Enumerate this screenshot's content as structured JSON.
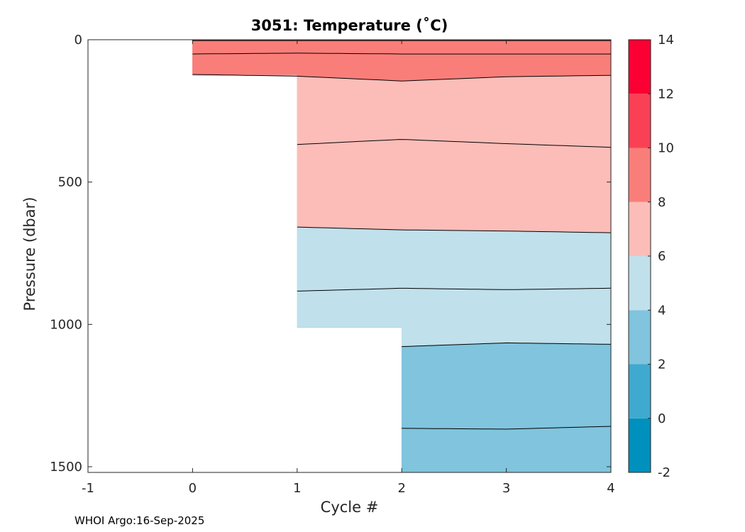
{
  "chart_data": {
    "type": "heatmap",
    "title": "3051:  Temperature (˚C)",
    "xlabel": "Cycle #",
    "ylabel": "Pressure (dbar)",
    "xlim": [
      -1,
      4
    ],
    "ylim": [
      0,
      1520
    ],
    "y_reversed": true,
    "x_ticks": [
      "-1",
      "0",
      "1",
      "2",
      "3",
      "4"
    ],
    "y_ticks": [
      "0",
      "500",
      "1000",
      "1500"
    ],
    "x_tick_values": [
      -1,
      0,
      1,
      2,
      3,
      4
    ],
    "y_tick_values": [
      0,
      500,
      1000,
      1500
    ],
    "colorbar": {
      "ticks": [
        "14",
        "12",
        "10",
        "8",
        "6",
        "4",
        "2",
        "0",
        "-2"
      ],
      "tick_values": [
        14,
        12,
        10,
        8,
        6,
        4,
        2,
        0,
        -2
      ],
      "levels": [
        -2,
        0,
        2,
        4,
        6,
        8,
        10,
        12,
        14
      ],
      "colors": [
        "#0090be",
        "#40a9cf",
        "#80c4dd",
        "#c0e0eb",
        "#fcbdb8",
        "#f97e7a",
        "#fa4055",
        "#fa0033"
      ]
    },
    "cycles": [
      0,
      1,
      2,
      3,
      4
    ],
    "profile_max_pressure": [
      125,
      1010,
      1520,
      1520,
      1520
    ],
    "isotherms": [
      {
        "level": 10,
        "cycle": [
          0,
          1,
          2,
          3,
          4
        ],
        "pressure": [
          3,
          3,
          3,
          3,
          3
        ]
      },
      {
        "level": 9,
        "cycle": [
          0,
          1,
          2,
          3,
          4
        ],
        "pressure": [
          50,
          47,
          50,
          50,
          50
        ]
      },
      {
        "level": 8,
        "cycle": [
          0,
          1,
          2,
          3,
          4
        ],
        "pressure": [
          122,
          128,
          145,
          130,
          125
        ]
      },
      {
        "level": 7,
        "cycle": [
          1,
          2,
          3,
          4
        ],
        "pressure": [
          368,
          350,
          365,
          378
        ]
      },
      {
        "level": 6,
        "cycle": [
          1,
          2,
          3,
          4
        ],
        "pressure": [
          658,
          668,
          672,
          678
        ]
      },
      {
        "level": 5,
        "cycle": [
          1,
          2,
          3,
          4
        ],
        "pressure": [
          883,
          873,
          878,
          873
        ]
      },
      {
        "level": 4,
        "cycle": [
          2,
          3,
          4
        ],
        "pressure": [
          1078,
          1065,
          1070
        ]
      },
      {
        "level": 3,
        "cycle": [
          2,
          3,
          4
        ],
        "pressure": [
          1365,
          1368,
          1358
        ]
      }
    ],
    "bands": [
      {
        "level": 8,
        "color": "#f97e7a"
      },
      {
        "level": 6,
        "color": "#fcbdb8"
      },
      {
        "level": 4,
        "color": "#c0e0eb"
      },
      {
        "level": 2,
        "color": "#80c4dd"
      }
    ]
  },
  "footer": "WHOI Argo:16-Sep-2025"
}
